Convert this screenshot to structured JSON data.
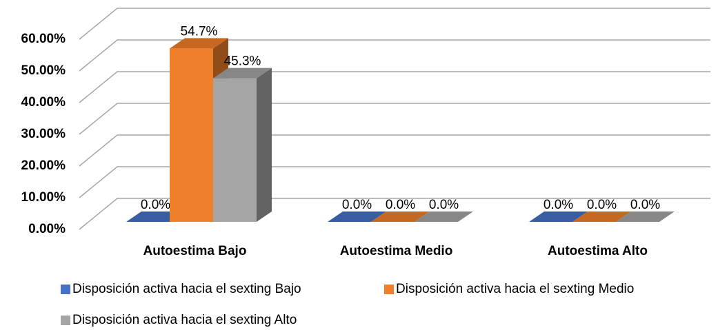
{
  "chart_data": {
    "type": "bar3d",
    "categories": [
      "Autoestima Bajo",
      "Autoestima Medio",
      "Autoestima Alto"
    ],
    "series": [
      {
        "name": "Disposición activa hacia el sexting Bajo",
        "color": "#4472c4",
        "values": [
          0,
          0,
          0
        ],
        "value_labels": [
          "0.0%",
          "0.0%",
          "0.0%"
        ]
      },
      {
        "name": "Disposición activa hacia el sexting Medio",
        "color": "#f07f2a",
        "values": [
          54.7,
          0,
          0
        ],
        "value_labels": [
          "54.7%",
          "0.0%",
          "0.0%"
        ]
      },
      {
        "name": "Disposición activa hacia el sexting Alto",
        "color": "#a5a5a5",
        "values": [
          45.3,
          0,
          0
        ],
        "value_labels": [
          "45.3%",
          "0.0%",
          "0.0%"
        ]
      }
    ],
    "ylim": [
      0,
      60
    ],
    "yticks": [
      {
        "value": 0,
        "label": "0.00%"
      },
      {
        "value": 10,
        "label": "10.00%"
      },
      {
        "value": 20,
        "label": "20.00%"
      },
      {
        "value": 30,
        "label": "30.00%"
      },
      {
        "value": 40,
        "label": "40.00%"
      },
      {
        "value": 50,
        "label": "50.00%"
      },
      {
        "value": 60,
        "label": "60.00%"
      }
    ],
    "grid": true,
    "legend": "bottom"
  }
}
